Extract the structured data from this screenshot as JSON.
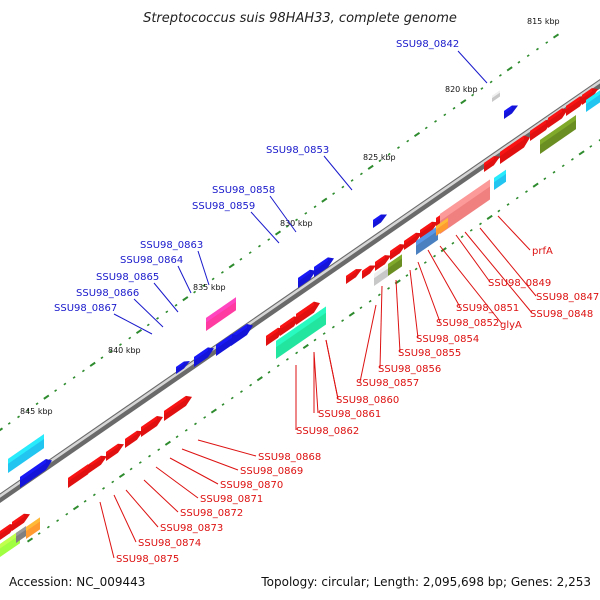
{
  "title": "Streptococcus suis 98HAH33, complete genome",
  "accession": "Accession: NC_009443",
  "topology": "Topology: circular; Length: 2,095,698 bp; Genes: 2,253",
  "colors": {
    "forward_label": "#1a1acc",
    "reverse_label": "#dd1111",
    "backbone": "#9a9a9a",
    "tick": "#2e8b2e"
  },
  "kbp_labels": [
    "815 kbp",
    "820 kbp",
    "825 kbp",
    "830 kbp",
    "835 kbp",
    "840 kbp",
    "845 kbp"
  ],
  "forward_genes": [
    "SSU98_0842",
    "SSU98_0853",
    "SSU98_0858",
    "SSU98_0859",
    "SSU98_0863",
    "SSU98_0864",
    "SSU98_0865",
    "SSU98_0866",
    "SSU98_0867"
  ],
  "reverse_genes": [
    "prfA",
    "SSU98_0847",
    "SSU98_0848",
    "SSU98_0849",
    "SSU98_0851",
    "glyA",
    "SSU98_0852",
    "SSU98_0854",
    "SSU98_0855",
    "SSU98_0856",
    "SSU98_0857",
    "SSU98_0860",
    "SSU98_0861",
    "SSU98_0862",
    "SSU98_0868",
    "SSU98_0869",
    "SSU98_0870",
    "SSU98_0871",
    "SSU98_0872",
    "SSU98_0873",
    "SSU98_0874",
    "SSU98_0875"
  ]
}
